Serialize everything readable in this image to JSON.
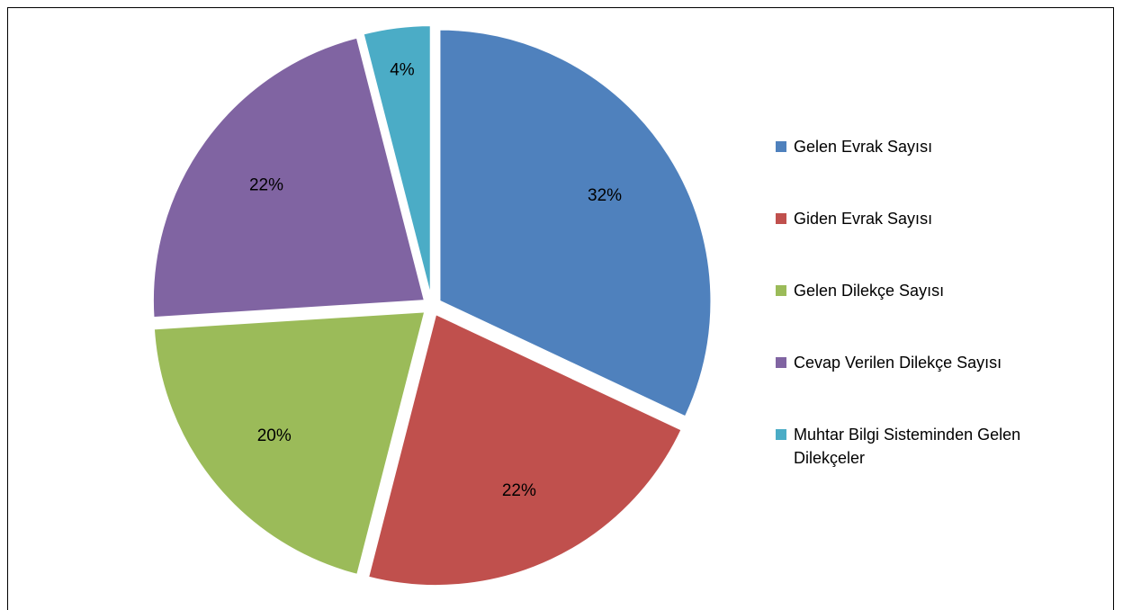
{
  "chart_data": {
    "type": "pie",
    "categories": [
      "Gelen Evrak Sayısı",
      "Giden Evrak Sayısı",
      "Gelen Dilekçe Sayısı",
      "Cevap Verilen Dilekçe Sayısı",
      "Muhtar Bilgi Sisteminden Gelen Dilekçeler"
    ],
    "values": [
      32,
      22,
      20,
      22,
      4
    ],
    "value_labels": [
      "32%",
      "22%",
      "20%",
      "22%",
      "4%"
    ],
    "colors": [
      "#4f81bd",
      "#c0504d",
      "#9bbb59",
      "#8064a2",
      "#4bacc6"
    ],
    "legend": "right"
  }
}
